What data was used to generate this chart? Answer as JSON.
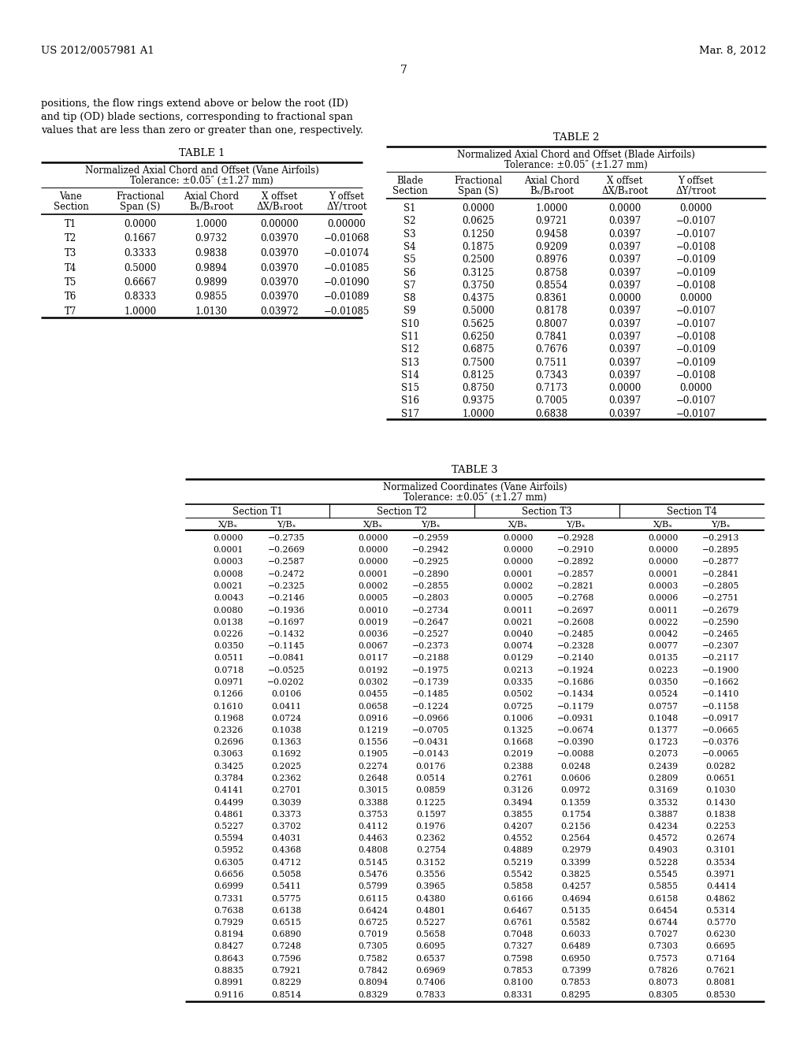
{
  "header_left": "US 2012/0057981 A1",
  "header_right": "Mar. 8, 2012",
  "page_number": "7",
  "intro_text": "positions, the flow rings extend above or below the root (ID)\nand tip (OD) blade sections, corresponding to fractional span\nvalues that are less than zero or greater than one, respectively.",
  "table1_title": "TABLE 1",
  "table1_subtitle1": "Normalized Axial Chord and Offset (Vane Airfoils)",
  "table1_subtitle2": "Tolerance: ±0.05″ (±1.27 mm)",
  "table1_col_headers_row1": [
    "Vane",
    "Fractional",
    "Axial Chord",
    "X offset",
    "Y offset"
  ],
  "table1_col_headers_row2": [
    "Section",
    "Span (S)",
    "Bₓ/Bₓroot",
    "ΔX/Bₓroot",
    "ΔY/τroot"
  ],
  "table1_data": [
    [
      "T1",
      "0.0000",
      "1.0000",
      "0.00000",
      "0.00000"
    ],
    [
      "T2",
      "0.1667",
      "0.9732",
      "0.03970",
      "−0.01068"
    ],
    [
      "T3",
      "0.3333",
      "0.9838",
      "0.03970",
      "−0.01074"
    ],
    [
      "T4",
      "0.5000",
      "0.9894",
      "0.03970",
      "−0.01085"
    ],
    [
      "T5",
      "0.6667",
      "0.9899",
      "0.03970",
      "−0.01090"
    ],
    [
      "T6",
      "0.8333",
      "0.9855",
      "0.03970",
      "−0.01089"
    ],
    [
      "T7",
      "1.0000",
      "1.0130",
      "0.03972",
      "−0.01085"
    ]
  ],
  "table2_title": "TABLE 2",
  "table2_subtitle1": "Normalized Axial Chord and Offset (Blade Airfoils)",
  "table2_subtitle2": "Tolerance: ±0.05″ (±1.27 mm)",
  "table2_col_headers_row1": [
    "Blade",
    "Fractional",
    "Axial Chord",
    "X offset",
    "Y offset"
  ],
  "table2_col_headers_row2": [
    "Section",
    "Span (S)",
    "Bₓ/Bₓroot",
    "ΔX/Bₓroot",
    "ΔY/τroot"
  ],
  "table2_data": [
    [
      "S1",
      "0.0000",
      "1.0000",
      "0.0000",
      "0.0000"
    ],
    [
      "S2",
      "0.0625",
      "0.9721",
      "0.0397",
      "−0.0107"
    ],
    [
      "S3",
      "0.1250",
      "0.9458",
      "0.0397",
      "−0.0107"
    ],
    [
      "S4",
      "0.1875",
      "0.9209",
      "0.0397",
      "−0.0108"
    ],
    [
      "S5",
      "0.2500",
      "0.8976",
      "0.0397",
      "−0.0109"
    ],
    [
      "S6",
      "0.3125",
      "0.8758",
      "0.0397",
      "−0.0109"
    ],
    [
      "S7",
      "0.3750",
      "0.8554",
      "0.0397",
      "−0.0108"
    ],
    [
      "S8",
      "0.4375",
      "0.8361",
      "0.0000",
      "0.0000"
    ],
    [
      "S9",
      "0.5000",
      "0.8178",
      "0.0397",
      "−0.0107"
    ],
    [
      "S10",
      "0.5625",
      "0.8007",
      "0.0397",
      "−0.0107"
    ],
    [
      "S11",
      "0.6250",
      "0.7841",
      "0.0397",
      "−0.0108"
    ],
    [
      "S12",
      "0.6875",
      "0.7676",
      "0.0397",
      "−0.0109"
    ],
    [
      "S13",
      "0.7500",
      "0.7511",
      "0.0397",
      "−0.0109"
    ],
    [
      "S14",
      "0.8125",
      "0.7343",
      "0.0397",
      "−0.0108"
    ],
    [
      "S15",
      "0.8750",
      "0.7173",
      "0.0000",
      "0.0000"
    ],
    [
      "S16",
      "0.9375",
      "0.7005",
      "0.0397",
      "−0.0107"
    ],
    [
      "S17",
      "1.0000",
      "0.6838",
      "0.0397",
      "−0.0107"
    ]
  ],
  "table3_title": "TABLE 3",
  "table3_subtitle1": "Normalized Coordinates (Vane Airfoils)",
  "table3_subtitle2": "Tolerance: ±0.05″ (±1.27 mm)",
  "table3_section_headers": [
    "Section T1",
    "Section T2",
    "Section T3",
    "Section T4"
  ],
  "table3_col_headers": [
    "X/Bₓ",
    "Y/Bₓ",
    "X/Bₓ",
    "Y/Bₓ",
    "X/Bₓ",
    "Y/Bₓ",
    "X/Bₓ",
    "Y/Bₓ"
  ],
  "table3_data": [
    [
      "0.0000",
      "−0.2735",
      "0.0000",
      "−0.2959",
      "0.0000",
      "−0.2928",
      "0.0000",
      "−0.2913"
    ],
    [
      "0.0001",
      "−0.2669",
      "0.0000",
      "−0.2942",
      "0.0000",
      "−0.2910",
      "0.0000",
      "−0.2895"
    ],
    [
      "0.0003",
      "−0.2587",
      "0.0000",
      "−0.2925",
      "0.0000",
      "−0.2892",
      "0.0000",
      "−0.2877"
    ],
    [
      "0.0008",
      "−0.2472",
      "0.0001",
      "−0.2890",
      "0.0001",
      "−0.2857",
      "0.0001",
      "−0.2841"
    ],
    [
      "0.0021",
      "−0.2325",
      "0.0002",
      "−0.2855",
      "0.0002",
      "−0.2821",
      "0.0003",
      "−0.2805"
    ],
    [
      "0.0043",
      "−0.2146",
      "0.0005",
      "−0.2803",
      "0.0005",
      "−0.2768",
      "0.0006",
      "−0.2751"
    ],
    [
      "0.0080",
      "−0.1936",
      "0.0010",
      "−0.2734",
      "0.0011",
      "−0.2697",
      "0.0011",
      "−0.2679"
    ],
    [
      "0.0138",
      "−0.1697",
      "0.0019",
      "−0.2647",
      "0.0021",
      "−0.2608",
      "0.0022",
      "−0.2590"
    ],
    [
      "0.0226",
      "−0.1432",
      "0.0036",
      "−0.2527",
      "0.0040",
      "−0.2485",
      "0.0042",
      "−0.2465"
    ],
    [
      "0.0350",
      "−0.1145",
      "0.0067",
      "−0.2373",
      "0.0074",
      "−0.2328",
      "0.0077",
      "−0.2307"
    ],
    [
      "0.0511",
      "−0.0841",
      "0.0117",
      "−0.2188",
      "0.0129",
      "−0.2140",
      "0.0135",
      "−0.2117"
    ],
    [
      "0.0718",
      "−0.0525",
      "0.0192",
      "−0.1975",
      "0.0213",
      "−0.1924",
      "0.0223",
      "−0.1900"
    ],
    [
      "0.0971",
      "−0.0202",
      "0.0302",
      "−0.1739",
      "0.0335",
      "−0.1686",
      "0.0350",
      "−0.1662"
    ],
    [
      "0.1266",
      "0.0106",
      "0.0455",
      "−0.1485",
      "0.0502",
      "−0.1434",
      "0.0524",
      "−0.1410"
    ],
    [
      "0.1610",
      "0.0411",
      "0.0658",
      "−0.1224",
      "0.0725",
      "−0.1179",
      "0.0757",
      "−0.1158"
    ],
    [
      "0.1968",
      "0.0724",
      "0.0916",
      "−0.0966",
      "0.1006",
      "−0.0931",
      "0.1048",
      "−0.0917"
    ],
    [
      "0.2326",
      "0.1038",
      "0.1219",
      "−0.0705",
      "0.1325",
      "−0.0674",
      "0.1377",
      "−0.0665"
    ],
    [
      "0.2696",
      "0.1363",
      "0.1556",
      "−0.0431",
      "0.1668",
      "−0.0390",
      "0.1723",
      "−0.0376"
    ],
    [
      "0.3063",
      "0.1692",
      "0.1905",
      "−0.0143",
      "0.2019",
      "−0.0088",
      "0.2073",
      "−0.0065"
    ],
    [
      "0.3425",
      "0.2025",
      "0.2274",
      "0.0176",
      "0.2388",
      "0.0248",
      "0.2439",
      "0.0282"
    ],
    [
      "0.3784",
      "0.2362",
      "0.2648",
      "0.0514",
      "0.2761",
      "0.0606",
      "0.2809",
      "0.0651"
    ],
    [
      "0.4141",
      "0.2701",
      "0.3015",
      "0.0859",
      "0.3126",
      "0.0972",
      "0.3169",
      "0.1030"
    ],
    [
      "0.4499",
      "0.3039",
      "0.3388",
      "0.1225",
      "0.3494",
      "0.1359",
      "0.3532",
      "0.1430"
    ],
    [
      "0.4861",
      "0.3373",
      "0.3753",
      "0.1597",
      "0.3855",
      "0.1754",
      "0.3887",
      "0.1838"
    ],
    [
      "0.5227",
      "0.3702",
      "0.4112",
      "0.1976",
      "0.4207",
      "0.2156",
      "0.4234",
      "0.2253"
    ],
    [
      "0.5594",
      "0.4031",
      "0.4463",
      "0.2362",
      "0.4552",
      "0.2564",
      "0.4572",
      "0.2674"
    ],
    [
      "0.5952",
      "0.4368",
      "0.4808",
      "0.2754",
      "0.4889",
      "0.2979",
      "0.4903",
      "0.3101"
    ],
    [
      "0.6305",
      "0.4712",
      "0.5145",
      "0.3152",
      "0.5219",
      "0.3399",
      "0.5228",
      "0.3534"
    ],
    [
      "0.6656",
      "0.5058",
      "0.5476",
      "0.3556",
      "0.5542",
      "0.3825",
      "0.5545",
      "0.3971"
    ],
    [
      "0.6999",
      "0.5411",
      "0.5799",
      "0.3965",
      "0.5858",
      "0.4257",
      "0.5855",
      "0.4414"
    ],
    [
      "0.7331",
      "0.5775",
      "0.6115",
      "0.4380",
      "0.6166",
      "0.4694",
      "0.6158",
      "0.4862"
    ],
    [
      "0.7638",
      "0.6138",
      "0.6424",
      "0.4801",
      "0.6467",
      "0.5135",
      "0.6454",
      "0.5314"
    ],
    [
      "0.7929",
      "0.6515",
      "0.6725",
      "0.5227",
      "0.6761",
      "0.5582",
      "0.6744",
      "0.5770"
    ],
    [
      "0.8194",
      "0.6890",
      "0.7019",
      "0.5658",
      "0.7048",
      "0.6033",
      "0.7027",
      "0.6230"
    ],
    [
      "0.8427",
      "0.7248",
      "0.7305",
      "0.6095",
      "0.7327",
      "0.6489",
      "0.7303",
      "0.6695"
    ],
    [
      "0.8643",
      "0.7596",
      "0.7582",
      "0.6537",
      "0.7598",
      "0.6950",
      "0.7573",
      "0.7164"
    ],
    [
      "0.8835",
      "0.7921",
      "0.7842",
      "0.6969",
      "0.7853",
      "0.7399",
      "0.7826",
      "0.7621"
    ],
    [
      "0.8991",
      "0.8229",
      "0.8094",
      "0.7406",
      "0.8100",
      "0.7853",
      "0.8073",
      "0.8081"
    ],
    [
      "0.9116",
      "0.8514",
      "0.8329",
      "0.7833",
      "0.8331",
      "0.8295",
      "0.8305",
      "0.8530"
    ]
  ]
}
